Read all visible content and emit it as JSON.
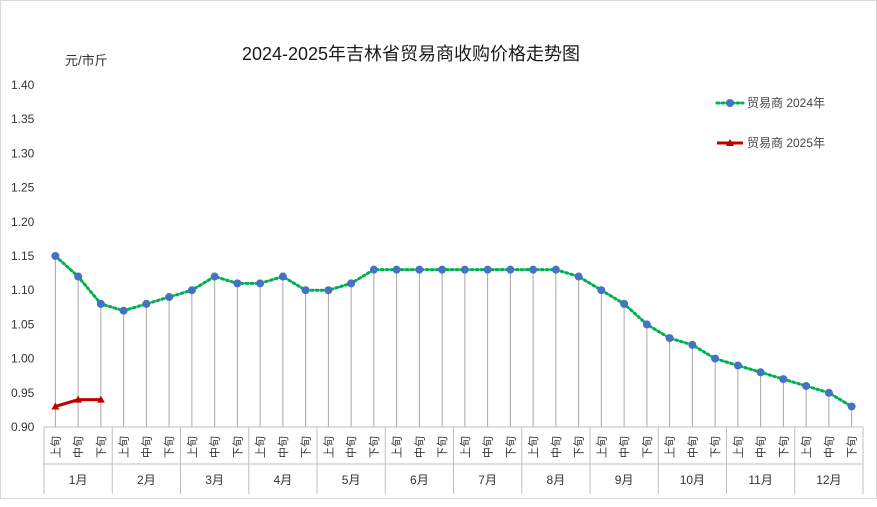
{
  "chart_data": {
    "type": "line",
    "title": "2024-2025年吉林省贸易商收购价格走势图",
    "ylabel": "元/市斤",
    "ylim": [
      0.9,
      1.4
    ],
    "yticks": [
      "0.90",
      "0.95",
      "1.00",
      "1.05",
      "1.10",
      "1.15",
      "1.20",
      "1.25",
      "1.30",
      "1.35",
      "1.40"
    ],
    "dekads": [
      "上旬",
      "中旬",
      "下旬"
    ],
    "months": [
      "1月",
      "2月",
      "3月",
      "4月",
      "5月",
      "6月",
      "7月",
      "8月",
      "9月",
      "10月",
      "11月",
      "12月"
    ],
    "series": [
      {
        "name": "贸易商 2024年",
        "color": "#00b050",
        "marker_color": "#4472c4",
        "style": "dotted-circle",
        "values": [
          1.15,
          1.12,
          1.08,
          1.07,
          1.08,
          1.09,
          1.1,
          1.12,
          1.11,
          1.11,
          1.12,
          1.1,
          1.1,
          1.11,
          1.13,
          1.13,
          1.13,
          1.13,
          1.13,
          1.13,
          1.13,
          1.13,
          1.13,
          1.12,
          1.1,
          1.08,
          1.05,
          1.03,
          1.02,
          1.0,
          0.99,
          0.98,
          0.97,
          0.96,
          0.95,
          0.93
        ]
      },
      {
        "name": "贸易商 2025年",
        "color": "#c00000",
        "marker_color": "#c00000",
        "style": "solid-triangle",
        "values": [
          0.93,
          0.94,
          0.94
        ]
      }
    ],
    "legend_position": "top-right",
    "drop_lines": true
  }
}
